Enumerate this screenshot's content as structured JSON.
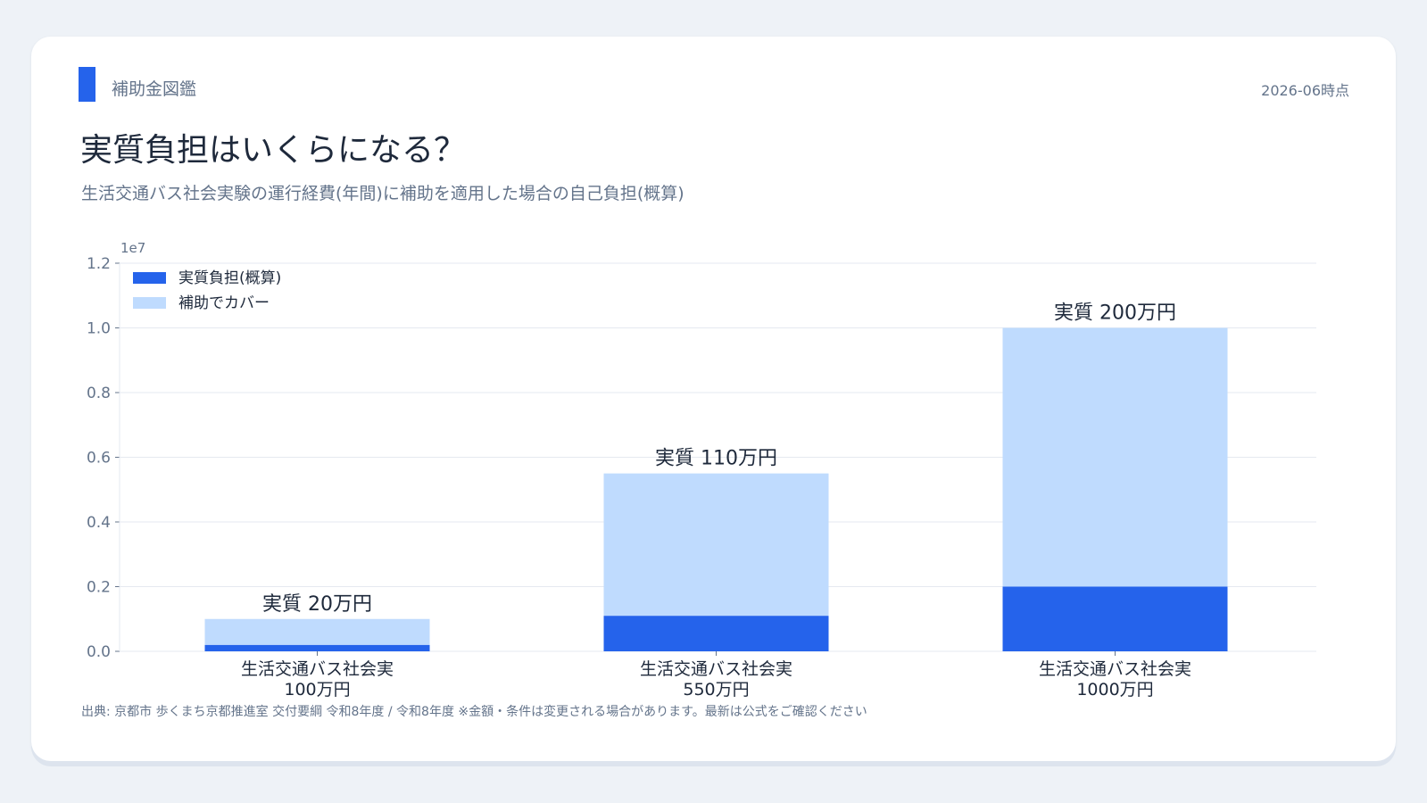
{
  "header": {
    "brand": "補助金図鑑",
    "as_of": "2026-06時点",
    "title": "実質負担はいくらになる？",
    "subtitle": "生活交通バス社会実験の運行経費(年間)に補助を適用した場合の自己負担(概算)"
  },
  "footer": {
    "source": "出典: 京都市 歩くまち京都推進室 交付要綱 令和8年度 / 令和8年度 ※金額・条件は変更される場合があります。最新は公式をご確認ください"
  },
  "colors": {
    "burden": "#2563eb",
    "covered": "#bfdbfe",
    "grid": "#e5e9f0",
    "axis_text": "#64748b",
    "label_text": "#1e293b"
  },
  "chart_data": {
    "type": "bar",
    "stacked": true,
    "categories": [
      [
        "生活交通バス社会実",
        "100万円"
      ],
      [
        "生活交通バス社会実",
        "550万円"
      ],
      [
        "生活交通バス社会実",
        "1000万円"
      ]
    ],
    "series": [
      {
        "name": "実質負担(概算)",
        "values": [
          200000,
          1100000,
          2000000
        ]
      },
      {
        "name": "補助でカバー",
        "values": [
          800000,
          4400000,
          8000000
        ]
      }
    ],
    "bar_labels": [
      "実質 20万円",
      "実質 110万円",
      "実質 200万円"
    ],
    "y_ticks": [
      "0.0",
      "0.2",
      "0.4",
      "0.6",
      "0.8",
      "1.0",
      "1.2"
    ],
    "y_tick_values": [
      0,
      2000000,
      4000000,
      6000000,
      8000000,
      10000000,
      12000000
    ],
    "y_offset_label": "1e7",
    "ylim": [
      0,
      12000000
    ],
    "grid": true,
    "legend": "top-left"
  }
}
